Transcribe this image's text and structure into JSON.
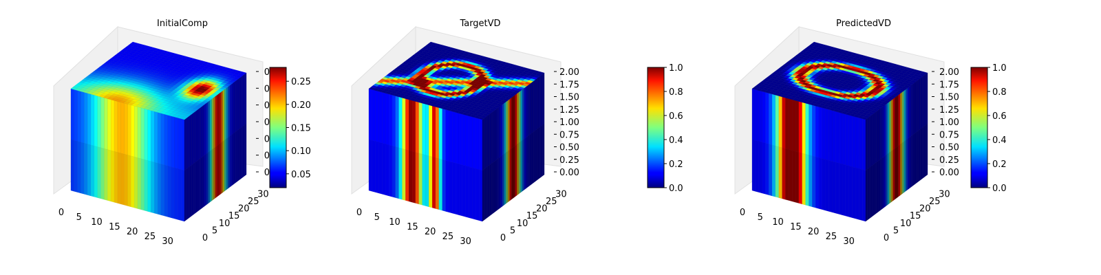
{
  "chart_data": [
    {
      "type": "heatmap",
      "plot": "3d-voxel-cube",
      "title": "InitialComp",
      "colormap": "jet",
      "x_ticks": [
        "0",
        "5",
        "10",
        "15",
        "20",
        "25",
        "30"
      ],
      "y_ticks": [
        "0",
        "5",
        "10",
        "15",
        "20",
        "25",
        "30"
      ],
      "z_ticks": [
        "0",
        "0",
        "0",
        "0",
        "0",
        "0",
        "0"
      ],
      "xlim": [
        0,
        32
      ],
      "ylim": [
        0,
        32
      ],
      "zlim": [
        0,
        2
      ],
      "colorbar": {
        "min": 0.02,
        "max": 0.28,
        "ticks": [
          "0.05",
          "0.10",
          "0.15",
          "0.20",
          "0.25"
        ]
      },
      "grid": true
    },
    {
      "type": "heatmap",
      "plot": "3d-voxel-cube",
      "title": "TargetVD",
      "colormap": "jet",
      "x_ticks": [
        "0",
        "5",
        "10",
        "15",
        "20",
        "25",
        "30"
      ],
      "y_ticks": [
        "0",
        "5",
        "10",
        "15",
        "20",
        "25",
        "30"
      ],
      "z_ticks": [
        "0.00",
        "0.25",
        "0.50",
        "0.75",
        "1.00",
        "1.25",
        "1.50",
        "1.75",
        "2.00"
      ],
      "xlim": [
        0,
        32
      ],
      "ylim": [
        0,
        32
      ],
      "zlim": [
        0,
        2
      ],
      "colorbar": {
        "min": 0,
        "max": 1,
        "ticks": [
          "0.0",
          "0.2",
          "0.4",
          "0.6",
          "0.8",
          "1.0"
        ]
      },
      "grid": true
    },
    {
      "type": "heatmap",
      "plot": "3d-voxel-cube",
      "title": "PredictedVD",
      "colormap": "jet",
      "x_ticks": [
        "0",
        "5",
        "10",
        "15",
        "20",
        "25",
        "30"
      ],
      "y_ticks": [
        "0",
        "5",
        "10",
        "15",
        "20",
        "25",
        "30"
      ],
      "z_ticks": [
        "0.00",
        "0.25",
        "0.50",
        "0.75",
        "1.00",
        "1.25",
        "1.50",
        "1.75",
        "2.00"
      ],
      "xlim": [
        0,
        32
      ],
      "ylim": [
        0,
        32
      ],
      "zlim": [
        0,
        2
      ],
      "colorbar": {
        "min": 0,
        "max": 1,
        "ticks": [
          "0.0",
          "0.2",
          "0.4",
          "0.6",
          "0.8",
          "1.0"
        ]
      },
      "grid": true
    }
  ]
}
